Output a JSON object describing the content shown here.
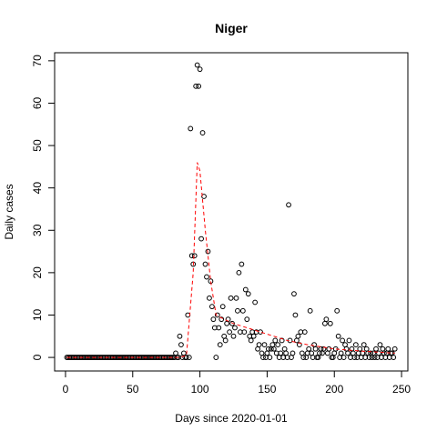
{
  "chart_data": {
    "type": "scatter",
    "title": "Niger",
    "xlabel": "Days since 2020-01-01",
    "ylabel": "Daily cases",
    "xlim": [
      -8.1,
      254.7
    ],
    "ylim": [
      -3.2,
      71.9
    ],
    "xticks": [
      0,
      50,
      100,
      150,
      200,
      250
    ],
    "yticks": [
      0,
      10,
      20,
      30,
      40,
      50,
      60,
      70
    ],
    "series": [
      {
        "color": "#000000",
        "marker": "circle",
        "x": [
          1,
          2,
          3,
          4,
          5,
          6,
          7,
          8,
          9,
          10,
          11,
          12,
          13,
          14,
          15,
          16,
          17,
          18,
          19,
          20,
          21,
          22,
          23,
          24,
          25,
          26,
          27,
          28,
          29,
          30,
          31,
          32,
          33,
          34,
          35,
          36,
          37,
          38,
          39,
          40,
          41,
          42,
          43,
          44,
          45,
          46,
          47,
          48,
          49,
          50,
          51,
          52,
          53,
          54,
          55,
          56,
          57,
          58,
          59,
          60,
          61,
          62,
          63,
          64,
          65,
          66,
          67,
          68,
          69,
          70,
          71,
          72,
          73,
          74,
          75,
          76,
          77,
          78,
          79,
          80,
          81,
          82,
          83,
          84,
          85,
          86,
          87,
          88,
          89,
          90,
          91,
          92,
          93,
          94,
          95,
          96,
          97,
          98,
          99,
          100,
          101,
          102,
          103,
          104,
          105,
          106,
          107,
          108,
          109,
          110,
          111,
          112,
          113,
          114,
          115,
          116,
          117,
          118,
          119,
          120,
          121,
          122,
          123,
          124,
          125,
          126,
          127,
          128,
          129,
          130,
          131,
          132,
          133,
          134,
          135,
          136,
          137,
          138,
          139,
          140,
          141,
          142,
          143,
          144,
          145,
          146,
          147,
          148,
          149,
          150,
          151,
          152,
          153,
          154,
          155,
          156,
          157,
          158,
          159,
          160,
          161,
          162,
          163,
          164,
          165,
          166,
          167,
          168,
          169,
          170,
          171,
          172,
          173,
          174,
          175,
          176,
          177,
          178,
          179,
          180,
          181,
          182,
          183,
          184,
          185,
          186,
          187,
          188,
          189,
          190,
          191,
          192,
          193,
          194,
          195,
          196,
          197,
          198,
          199,
          200,
          201,
          202,
          203,
          204,
          205,
          206,
          207,
          208,
          209,
          210,
          211,
          212,
          213,
          214,
          215,
          216,
          217,
          218,
          219,
          220,
          221,
          222,
          223,
          224,
          225,
          226,
          227,
          228,
          229,
          230,
          231,
          232,
          233,
          234,
          235,
          236,
          237,
          238,
          239,
          240,
          241,
          242,
          243,
          244,
          245
        ],
        "values": [
          0,
          0,
          0,
          0,
          0,
          0,
          0,
          0,
          0,
          0,
          0,
          0,
          0,
          0,
          0,
          0,
          0,
          0,
          0,
          0,
          0,
          0,
          0,
          0,
          0,
          0,
          0,
          0,
          0,
          0,
          0,
          0,
          0,
          0,
          0,
          0,
          0,
          0,
          0,
          0,
          0,
          0,
          0,
          0,
          0,
          0,
          0,
          0,
          0,
          0,
          0,
          0,
          0,
          0,
          0,
          0,
          0,
          0,
          0,
          0,
          0,
          0,
          0,
          0,
          0,
          0,
          0,
          0,
          0,
          0,
          0,
          0,
          0,
          0,
          0,
          0,
          0,
          0,
          0,
          0,
          0,
          1,
          0,
          0,
          5,
          3,
          0,
          1,
          0,
          0,
          10,
          0,
          54,
          24,
          22,
          24,
          64,
          69,
          64,
          68,
          28,
          53,
          38,
          22,
          19,
          25,
          14,
          18,
          12,
          9,
          7,
          0,
          10,
          7,
          3,
          9,
          12,
          5,
          4,
          8,
          9,
          6,
          14,
          8,
          5,
          7,
          14,
          11,
          20,
          6,
          22,
          11,
          6,
          16,
          9,
          15,
          5,
          4,
          6,
          5,
          13,
          6,
          2,
          3,
          6,
          1,
          0,
          3,
          0,
          1,
          2,
          0,
          2,
          3,
          2,
          4,
          1,
          3,
          0,
          1,
          4,
          0,
          2,
          1,
          0,
          36,
          4,
          0,
          1,
          15,
          10,
          4,
          5,
          3,
          6,
          1,
          0,
          6,
          0,
          1,
          2,
          11,
          1,
          0,
          3,
          2,
          0,
          0,
          1,
          2,
          1,
          2,
          8,
          9,
          1,
          2,
          8,
          0,
          0,
          1,
          2,
          11,
          5,
          0,
          1,
          4,
          0,
          3,
          2,
          1,
          4,
          0,
          2,
          1,
          0,
          3,
          0,
          1,
          2,
          0,
          1,
          3,
          0,
          2,
          1,
          0,
          1,
          0,
          1,
          0,
          2,
          0,
          1,
          3,
          0,
          2,
          1,
          0,
          1,
          2,
          0,
          1,
          1,
          0,
          2
        ]
      },
      {
        "color": "#ff0000",
        "line": "dashed",
        "x": [
          1,
          85,
          90,
          95,
          98,
          100,
          104,
          108,
          112,
          118,
          125,
          135,
          150,
          165,
          180,
          200,
          220,
          245
        ],
        "values": [
          0,
          0,
          0.5,
          20,
          46,
          44,
          30,
          18,
          10,
          9,
          8,
          7,
          5.5,
          4,
          3,
          2,
          1.5,
          1
        ]
      }
    ]
  }
}
